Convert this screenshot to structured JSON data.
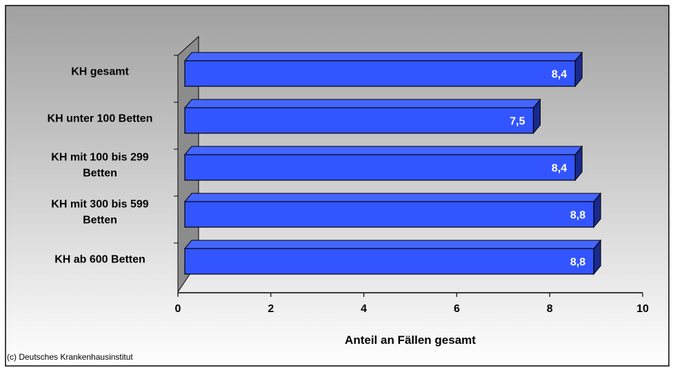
{
  "chart_data": {
    "type": "bar",
    "orientation": "horizontal",
    "categories": [
      [
        "KH gesamt"
      ],
      [
        "KH unter 100 Betten"
      ],
      [
        "KH mit 100 bis 299",
        "Betten"
      ],
      [
        "KH mit 300 bis 599",
        "Betten"
      ],
      [
        "KH ab 600 Betten"
      ]
    ],
    "values": [
      8.4,
      7.5,
      8.4,
      8.8,
      8.8
    ],
    "value_labels": [
      "8,4",
      "7,5",
      "8,4",
      "8,8",
      "8,8"
    ],
    "xlabel": "Anteil an Fällen gesamt",
    "xlim": [
      0,
      10
    ],
    "xticks": [
      0,
      2,
      4,
      6,
      8,
      10
    ],
    "grid": false,
    "style_3d": true,
    "credit": "(c) Deutsches Krankenhausinstitut",
    "colors": {
      "bar_front": "#3355ff",
      "bar_top": "#4466ff",
      "bar_side": "#1a2a8c",
      "wall": "#8c8c8c",
      "background_top": "#a0a0a0",
      "background_bottom": "#ffffff"
    }
  }
}
